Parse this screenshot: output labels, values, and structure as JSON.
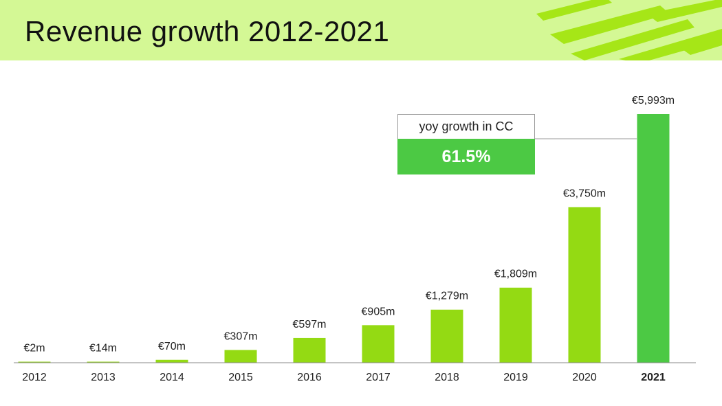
{
  "colors": {
    "header_bg": "#d4f895",
    "bar": "#94da13",
    "highlight_bar": "#4cc944",
    "stripe": "#a6e617"
  },
  "chart_data": {
    "type": "bar",
    "title": "Revenue growth 2012-2021",
    "categories": [
      "2012",
      "2013",
      "2014",
      "2015",
      "2016",
      "2017",
      "2018",
      "2019",
      "2020",
      "2021"
    ],
    "values": [
      2,
      14,
      70,
      307,
      597,
      905,
      1279,
      1809,
      3750,
      5993
    ],
    "value_labels": [
      "€2m",
      "€14m",
      "€70m",
      "€307m",
      "€597m",
      "€905m",
      "€1,279m",
      "€1,809m",
      "€3,750m",
      "€5,993m"
    ],
    "highlight_category": "2021",
    "xlabel": "",
    "ylabel": "",
    "ylim": [
      0,
      5993
    ],
    "grid": false,
    "legend": "none",
    "annotation": {
      "label": "yoy growth in CC",
      "value": "61.5%"
    }
  }
}
